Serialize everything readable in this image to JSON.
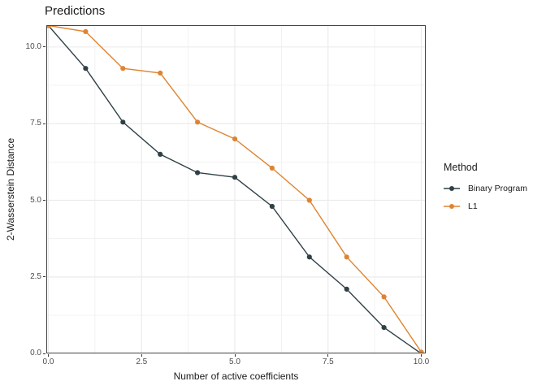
{
  "chart_data": {
    "type": "line",
    "title": "Predictions",
    "xlabel": "Number of active coefficients",
    "ylabel": "2-Wasserstein Distance",
    "legend_title": "Method",
    "legend_position": "right",
    "grid": true,
    "x": [
      0,
      1,
      2,
      3,
      4,
      5,
      6,
      7,
      8,
      9,
      10
    ],
    "series": [
      {
        "name": "Binary Program",
        "color": "#2f4046",
        "values": [
          10.7,
          9.3,
          7.55,
          6.5,
          5.9,
          5.75,
          4.8,
          3.15,
          2.1,
          0.85,
          0.0
        ]
      },
      {
        "name": "L1",
        "color": "#de8431",
        "values": [
          10.7,
          10.5,
          9.3,
          9.15,
          7.55,
          7.0,
          6.05,
          5.0,
          3.15,
          1.85,
          0.05
        ]
      }
    ],
    "xlim": [
      0,
      10
    ],
    "ylim": [
      0,
      10.7
    ],
    "x_ticks": [
      0,
      2.5,
      5,
      7.5,
      10
    ],
    "y_ticks": [
      0,
      2.5,
      5,
      7.5,
      10
    ],
    "x_tick_labels": [
      "0.0",
      "2.5",
      "5.0",
      "7.5",
      "10.0"
    ],
    "y_tick_labels": [
      "0.0",
      "2.5",
      "5.0",
      "7.5",
      "10.0"
    ],
    "minor_ticks": [
      1.25,
      3.75,
      6.25,
      8.75
    ],
    "colors": {
      "background": "#ffffff",
      "grid_major": "#ebebeb",
      "grid_minor": "#ebebeb",
      "panel_border": "#424242",
      "tick_mark": "#333333",
      "tick_label": "#4d4d4d",
      "text": "#1a1a1a"
    }
  }
}
